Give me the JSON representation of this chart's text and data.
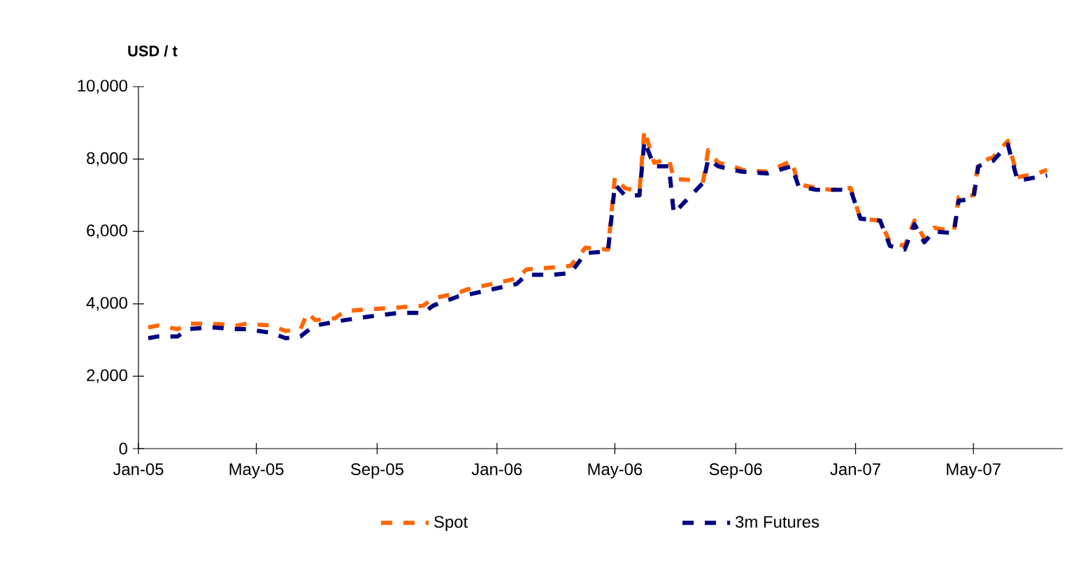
{
  "chart_data": {
    "type": "line",
    "ylabel": "USD / t",
    "x": [
      "2005-01-11",
      "2005-01-21",
      "2005-02-10",
      "2005-02-20",
      "2005-03-17",
      "2005-04-11",
      "2005-04-21",
      "2005-05-16",
      "2005-05-31",
      "2005-06-15",
      "2005-06-22",
      "2005-06-30",
      "2005-07-20",
      "2005-07-30",
      "2005-08-24",
      "2005-09-23",
      "2005-10-18",
      "2005-10-28",
      "2005-11-22",
      "2005-12-02",
      "2005-12-27",
      "2006-01-21",
      "2006-01-31",
      "2006-02-25",
      "2006-03-17",
      "2006-04-01",
      "2006-04-24",
      "2006-05-01",
      "2006-05-11",
      "2006-05-26",
      "2006-05-31",
      "2006-06-10",
      "2006-06-25",
      "2006-06-30",
      "2006-07-30",
      "2006-08-04",
      "2006-08-14",
      "2006-08-29",
      "2006-09-08",
      "2006-10-03",
      "2006-10-28",
      "2006-11-04",
      "2006-11-22",
      "2006-12-07",
      "2006-12-27",
      "2007-01-06",
      "2007-01-26",
      "2007-02-05",
      "2007-02-20",
      "2007-03-02",
      "2007-03-12",
      "2007-03-22",
      "2007-04-11",
      "2007-04-16",
      "2007-05-01",
      "2007-05-06",
      "2007-05-21",
      "2007-06-05",
      "2007-06-15",
      "2007-07-05",
      "2007-07-15"
    ],
    "series": [
      {
        "name": "Spot",
        "color": "#ff6600",
        "values": [
          3350,
          3400,
          3300,
          3450,
          3450,
          3400,
          3450,
          3400,
          3250,
          3300,
          3750,
          3550,
          3600,
          3800,
          3850,
          3900,
          3950,
          4150,
          4300,
          4400,
          4550,
          4700,
          4950,
          5000,
          5050,
          5550,
          5500,
          7500,
          7200,
          7100,
          8800,
          7900,
          8000,
          7450,
          7400,
          8250,
          7900,
          7800,
          7700,
          7650,
          7950,
          7300,
          7200,
          7150,
          7200,
          6350,
          6300,
          5700,
          5600,
          6300,
          5800,
          6100,
          6000,
          6950,
          7000,
          7900,
          8050,
          8500,
          7500,
          7600,
          7700
        ]
      },
      {
        "name": "3m Futures",
        "color": "#000080",
        "values": [
          3050,
          3100,
          3100,
          3300,
          3350,
          3300,
          3300,
          3200,
          3050,
          3100,
          3250,
          3400,
          3500,
          3550,
          3650,
          3750,
          3750,
          3950,
          4200,
          4250,
          4400,
          4550,
          4800,
          4800,
          4850,
          5400,
          5450,
          7300,
          7000,
          7000,
          8500,
          7800,
          7800,
          6500,
          7350,
          8000,
          7800,
          7700,
          7650,
          7600,
          7800,
          7250,
          7150,
          7150,
          7150,
          6350,
          6300,
          5600,
          5500,
          6200,
          5700,
          6000,
          5950,
          6850,
          6900,
          7800,
          7950,
          8400,
          7400,
          7500,
          7550
        ]
      }
    ],
    "xlim": [
      "2005-01-01",
      "2007-07-31"
    ],
    "xticks": [
      {
        "value": "2005-01-01",
        "label": "Jan-05"
      },
      {
        "value": "2005-05-01",
        "label": "May-05"
      },
      {
        "value": "2005-09-01",
        "label": "Sep-05"
      },
      {
        "value": "2006-01-01",
        "label": "Jan-06"
      },
      {
        "value": "2006-05-01",
        "label": "May-06"
      },
      {
        "value": "2006-09-01",
        "label": "Sep-06"
      },
      {
        "value": "2007-01-01",
        "label": "Jan-07"
      },
      {
        "value": "2007-05-01",
        "label": "May-07"
      }
    ],
    "ylim": [
      0,
      10000
    ],
    "yticks": [
      0,
      {
        "value": 2000,
        "label": "2,000"
      },
      {
        "value": 4000,
        "label": "4,000"
      },
      {
        "value": 6000,
        "label": "6,000"
      },
      {
        "value": 8000,
        "label": "8,000"
      },
      {
        "value": 10000,
        "label": "10,000"
      }
    ],
    "line_style": "dashed",
    "legend": "bottom",
    "grid": false
  }
}
